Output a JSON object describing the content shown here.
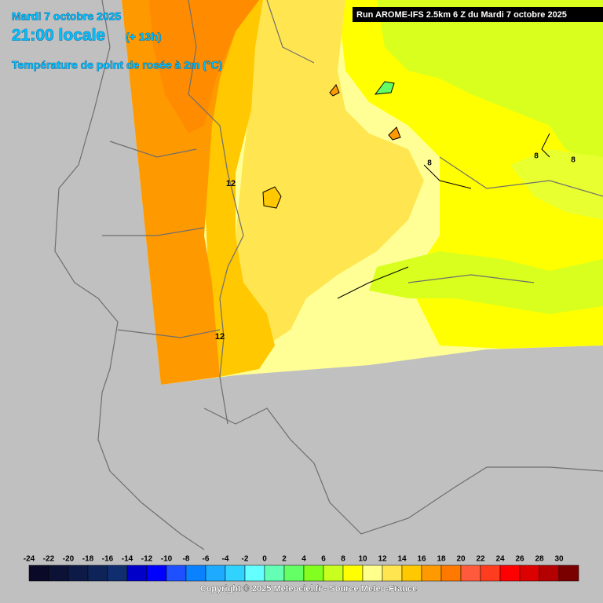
{
  "header": {
    "date": "Mardi 7 octobre 2025",
    "time": "21:00 locale",
    "lead_time": "(+ 13h)",
    "parameter": "Température de point de rosée à 2m (°C)",
    "run": "Run AROME-IFS 2.5km 6 Z du Mardi 7 octobre 2025"
  },
  "map": {
    "contour_labels": [
      "12",
      "12",
      "8",
      "8",
      "8"
    ]
  },
  "colorbar": {
    "labels": [
      -24,
      -22,
      -20,
      -18,
      -16,
      -14,
      -12,
      -10,
      -8,
      -6,
      -4,
      -2,
      0,
      2,
      4,
      6,
      8,
      10,
      12,
      14,
      16,
      18,
      20,
      22,
      24,
      26,
      28,
      30
    ],
    "colors": [
      "#0a0a28",
      "#0c1236",
      "#0d1a48",
      "#0e2358",
      "#102d70",
      "#0000c8",
      "#0000ff",
      "#1e50ff",
      "#0a82ff",
      "#1eaaff",
      "#32d2ff",
      "#64ffff",
      "#64ffb4",
      "#64ff64",
      "#82ff1e",
      "#c8ff1e",
      "#ffff00",
      "#ffff8c",
      "#ffe650",
      "#ffc800",
      "#ff9900",
      "#ff7800",
      "#ff5a3c",
      "#ff3c1e",
      "#ff0000",
      "#dc0000",
      "#b40000",
      "#7a0000"
    ]
  },
  "footer": {
    "copyright": "Copyright © 2025 Meteociel.fr - Source Meteo-France"
  }
}
